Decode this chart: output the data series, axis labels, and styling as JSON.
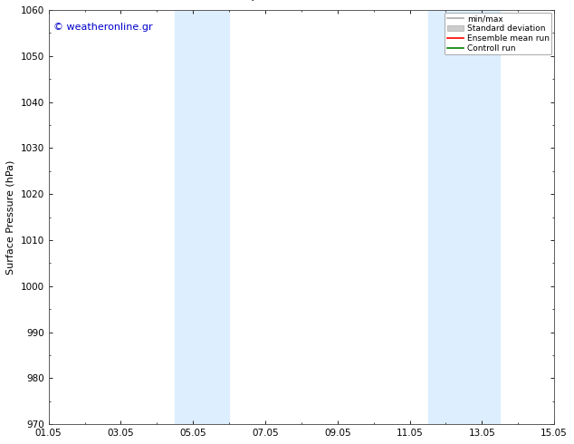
{
  "ylabel": "Surface Pressure (hPa)",
  "ylim": [
    970,
    1060
  ],
  "yticks": [
    970,
    980,
    990,
    1000,
    1010,
    1020,
    1030,
    1040,
    1050,
    1060
  ],
  "xlim_start": 0,
  "xlim_end": 14,
  "xtick_labels": [
    "01.05",
    "03.05",
    "05.05",
    "07.05",
    "09.05",
    "11.05",
    "13.05",
    "15.05"
  ],
  "xtick_positions": [
    0,
    2,
    4,
    6,
    8,
    10,
    12,
    14
  ],
  "shade_bands": [
    {
      "xmin": 3.5,
      "xmax": 5.0,
      "color": "#ddeeff"
    },
    {
      "xmin": 10.5,
      "xmax": 12.5,
      "color": "#ddeeff"
    }
  ],
  "watermark": "© weatheronline.gr",
  "watermark_color": "#0000cc",
  "legend_items": [
    {
      "label": "min/max",
      "color": "#aaaaaa",
      "lw": 1.2
    },
    {
      "label": "Standard deviation",
      "color": "#cccccc",
      "lw": 6
    },
    {
      "label": "Ensemble mean run",
      "color": "#ff0000",
      "lw": 1.2
    },
    {
      "label": "Controll run",
      "color": "#008000",
      "lw": 1.2
    }
  ],
  "bg_color": "#ffffff",
  "title_fontsize": 9.5,
  "axis_fontsize": 8,
  "tick_fontsize": 7.5,
  "figsize": [
    6.34,
    4.9
  ],
  "dpi": 100
}
